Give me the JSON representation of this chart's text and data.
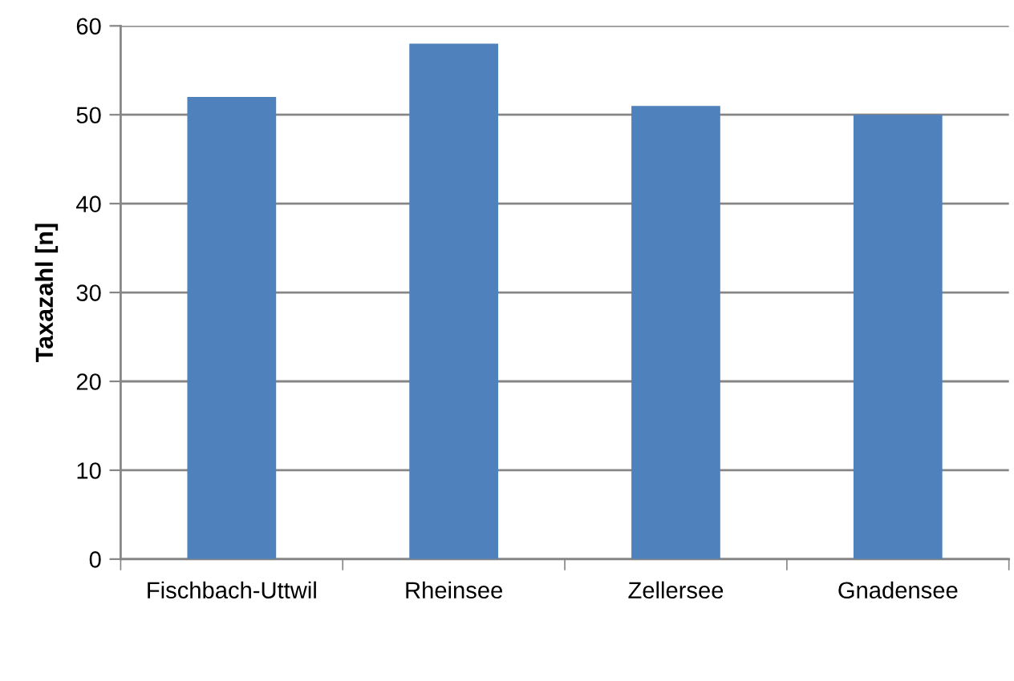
{
  "chart_data": {
    "type": "bar",
    "ylabel": "Taxazahl [n]",
    "categories": [
      "Fischbach-Uttwil",
      "Rheinsee",
      "Zellersee",
      "Gnadensee"
    ],
    "values": [
      52,
      58,
      51,
      50
    ],
    "color": "#4f81bd",
    "ylim": [
      0,
      60
    ],
    "yticks": [
      0,
      10,
      20,
      30,
      40,
      50,
      60
    ],
    "grid": "y",
    "legend": false
  }
}
